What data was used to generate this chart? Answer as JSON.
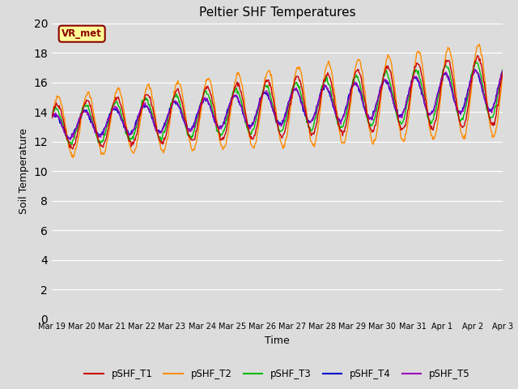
{
  "title": "Peltier SHF Temperatures",
  "xlabel": "Time",
  "ylabel": "Soil Temperature",
  "ylim": [
    0,
    20
  ],
  "yticks": [
    0,
    2,
    4,
    6,
    8,
    10,
    12,
    14,
    16,
    18,
    20
  ],
  "bg_color": "#dcdcdc",
  "annotation_text": "VR_met",
  "annotation_fg": "#8B0000",
  "annotation_bg": "#FFFF99",
  "series_colors": {
    "pSHF_T1": "#cc0000",
    "pSHF_T2": "#ff8c00",
    "pSHF_T3": "#00bb00",
    "pSHF_T4": "#0000cc",
    "pSHF_T5": "#9900bb"
  },
  "xtick_labels": [
    "Mar 19",
    "Mar 20",
    "Mar 21",
    "Mar 22",
    "Mar 23",
    "Mar 24",
    "Mar 25",
    "Mar 26",
    "Mar 27",
    "Mar 28",
    "Mar 29",
    "Mar 30",
    "Mar 31",
    "Apr 1",
    "Apr 2",
    "Apr 3"
  ],
  "n_points": 720,
  "n_days": 15
}
